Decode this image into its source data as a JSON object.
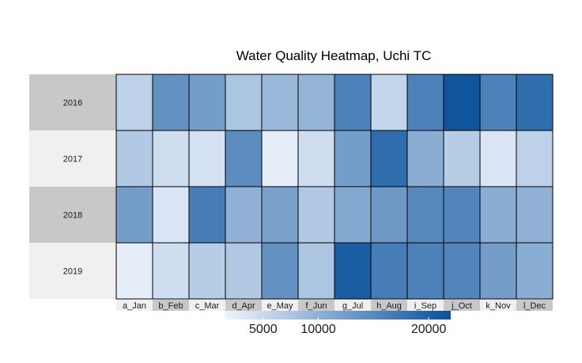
{
  "chart_data": {
    "type": "heatmap",
    "title": "Water Quality Heatmap, Uchi TC",
    "columns": [
      "a_Jan",
      "b_Feb",
      "c_Mar",
      "d_Apr",
      "e_May",
      "f_Jun",
      "g_Jul",
      "h_Aug",
      "i_Sep",
      "j_Oct",
      "k_Nov",
      "l_Dec"
    ],
    "rows": [
      "2016",
      "2017",
      "2018",
      "2019"
    ],
    "values": [
      [
        6000,
        14000,
        12500,
        7500,
        9000,
        9500,
        16000,
        5500,
        16000,
        21500,
        16000,
        18500
      ],
      [
        7000,
        4500,
        4000,
        14500,
        2500,
        4500,
        12500,
        18500,
        10500,
        6500,
        3500,
        6000
      ],
      [
        12500,
        3500,
        16500,
        10000,
        12000,
        7000,
        11000,
        13000,
        15000,
        15500,
        10500,
        10000
      ],
      [
        2500,
        4500,
        6500,
        7000,
        14000,
        7500,
        20500,
        16500,
        16000,
        15500,
        12500,
        10500
      ]
    ],
    "legend": {
      "ticks": [
        5000,
        10000,
        20000
      ],
      "range": [
        1500,
        22000
      ],
      "colors": [
        "#f0f5fe",
        "#08519c"
      ]
    },
    "strip_colors": [
      "#c8c8c8",
      "#f0f0f0"
    ]
  }
}
